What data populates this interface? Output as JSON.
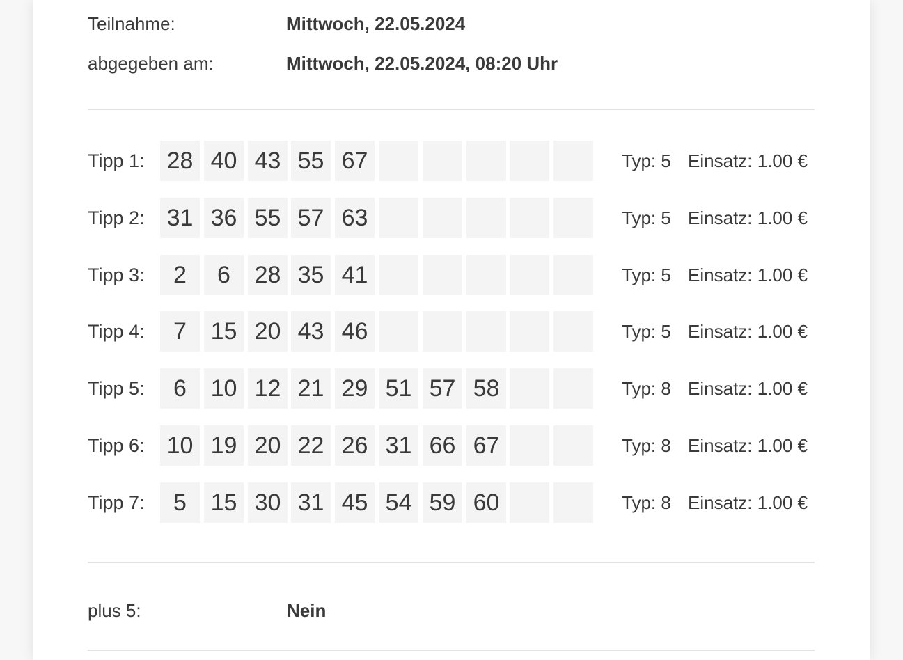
{
  "header": {
    "teilnahme_label": "Teilnahme:",
    "teilnahme_value": "Mittwoch, 22.05.2024",
    "abgegeben_label": "abgegeben am:",
    "abgegeben_value": "Mittwoch, 22.05.2024, 08:20 Uhr"
  },
  "tipps": [
    {
      "label": "Tipp 1:",
      "numbers": [
        "28",
        "40",
        "43",
        "55",
        "67",
        "",
        "",
        "",
        "",
        ""
      ],
      "typ": "Typ: 5",
      "einsatz": "Einsatz: 1.00 €"
    },
    {
      "label": "Tipp 2:",
      "numbers": [
        "31",
        "36",
        "55",
        "57",
        "63",
        "",
        "",
        "",
        "",
        ""
      ],
      "typ": "Typ: 5",
      "einsatz": "Einsatz: 1.00 €"
    },
    {
      "label": "Tipp 3:",
      "numbers": [
        "2",
        "6",
        "28",
        "35",
        "41",
        "",
        "",
        "",
        "",
        ""
      ],
      "typ": "Typ: 5",
      "einsatz": "Einsatz: 1.00 €"
    },
    {
      "label": "Tipp 4:",
      "numbers": [
        "7",
        "15",
        "20",
        "43",
        "46",
        "",
        "",
        "",
        "",
        ""
      ],
      "typ": "Typ: 5",
      "einsatz": "Einsatz: 1.00 €"
    },
    {
      "label": "Tipp 5:",
      "numbers": [
        "6",
        "10",
        "12",
        "21",
        "29",
        "51",
        "57",
        "58",
        "",
        ""
      ],
      "typ": "Typ: 8",
      "einsatz": "Einsatz: 1.00 €"
    },
    {
      "label": "Tipp 6:",
      "numbers": [
        "10",
        "19",
        "20",
        "22",
        "26",
        "31",
        "66",
        "67",
        "",
        ""
      ],
      "typ": "Typ: 8",
      "einsatz": "Einsatz: 1.00 €"
    },
    {
      "label": "Tipp 7:",
      "numbers": [
        "5",
        "15",
        "30",
        "31",
        "45",
        "54",
        "59",
        "60",
        "",
        ""
      ],
      "typ": "Typ: 8",
      "einsatz": "Einsatz: 1.00 €"
    }
  ],
  "plus5": {
    "label": "plus 5:",
    "value": "Nein"
  },
  "colors": {
    "cell_background": "#f4f4f4",
    "divider": "#e2e2e2",
    "text": "#3a3a3a"
  }
}
